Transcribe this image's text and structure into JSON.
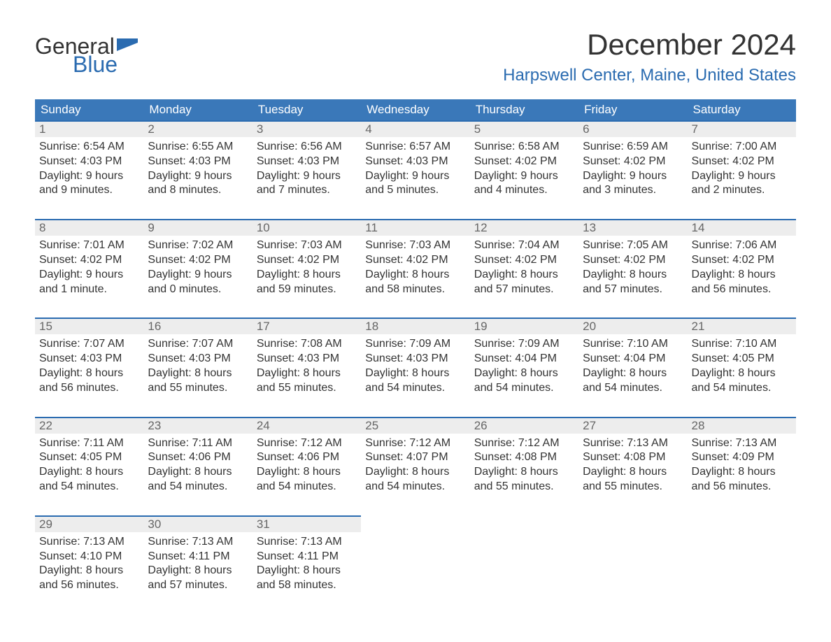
{
  "logo": {
    "line1": "General",
    "line2": "Blue",
    "flag_color": "#2a6bb0"
  },
  "title": "December 2024",
  "location": "Harpswell Center, Maine, United States",
  "colors": {
    "header_bg": "#3a78b9",
    "header_text": "#ffffff",
    "accent": "#2a6bb0",
    "daynum_bg": "#ededed",
    "daynum_text": "#666666",
    "body_text": "#333333",
    "background": "#ffffff"
  },
  "days_of_week": [
    "Sunday",
    "Monday",
    "Tuesday",
    "Wednesday",
    "Thursday",
    "Friday",
    "Saturday"
  ],
  "weeks": [
    [
      {
        "n": "1",
        "sunrise": "Sunrise: 6:54 AM",
        "sunset": "Sunset: 4:03 PM",
        "dl1": "Daylight: 9 hours",
        "dl2": "and 9 minutes."
      },
      {
        "n": "2",
        "sunrise": "Sunrise: 6:55 AM",
        "sunset": "Sunset: 4:03 PM",
        "dl1": "Daylight: 9 hours",
        "dl2": "and 8 minutes."
      },
      {
        "n": "3",
        "sunrise": "Sunrise: 6:56 AM",
        "sunset": "Sunset: 4:03 PM",
        "dl1": "Daylight: 9 hours",
        "dl2": "and 7 minutes."
      },
      {
        "n": "4",
        "sunrise": "Sunrise: 6:57 AM",
        "sunset": "Sunset: 4:03 PM",
        "dl1": "Daylight: 9 hours",
        "dl2": "and 5 minutes."
      },
      {
        "n": "5",
        "sunrise": "Sunrise: 6:58 AM",
        "sunset": "Sunset: 4:02 PM",
        "dl1": "Daylight: 9 hours",
        "dl2": "and 4 minutes."
      },
      {
        "n": "6",
        "sunrise": "Sunrise: 6:59 AM",
        "sunset": "Sunset: 4:02 PM",
        "dl1": "Daylight: 9 hours",
        "dl2": "and 3 minutes."
      },
      {
        "n": "7",
        "sunrise": "Sunrise: 7:00 AM",
        "sunset": "Sunset: 4:02 PM",
        "dl1": "Daylight: 9 hours",
        "dl2": "and 2 minutes."
      }
    ],
    [
      {
        "n": "8",
        "sunrise": "Sunrise: 7:01 AM",
        "sunset": "Sunset: 4:02 PM",
        "dl1": "Daylight: 9 hours",
        "dl2": "and 1 minute."
      },
      {
        "n": "9",
        "sunrise": "Sunrise: 7:02 AM",
        "sunset": "Sunset: 4:02 PM",
        "dl1": "Daylight: 9 hours",
        "dl2": "and 0 minutes."
      },
      {
        "n": "10",
        "sunrise": "Sunrise: 7:03 AM",
        "sunset": "Sunset: 4:02 PM",
        "dl1": "Daylight: 8 hours",
        "dl2": "and 59 minutes."
      },
      {
        "n": "11",
        "sunrise": "Sunrise: 7:03 AM",
        "sunset": "Sunset: 4:02 PM",
        "dl1": "Daylight: 8 hours",
        "dl2": "and 58 minutes."
      },
      {
        "n": "12",
        "sunrise": "Sunrise: 7:04 AM",
        "sunset": "Sunset: 4:02 PM",
        "dl1": "Daylight: 8 hours",
        "dl2": "and 57 minutes."
      },
      {
        "n": "13",
        "sunrise": "Sunrise: 7:05 AM",
        "sunset": "Sunset: 4:02 PM",
        "dl1": "Daylight: 8 hours",
        "dl2": "and 57 minutes."
      },
      {
        "n": "14",
        "sunrise": "Sunrise: 7:06 AM",
        "sunset": "Sunset: 4:02 PM",
        "dl1": "Daylight: 8 hours",
        "dl2": "and 56 minutes."
      }
    ],
    [
      {
        "n": "15",
        "sunrise": "Sunrise: 7:07 AM",
        "sunset": "Sunset: 4:03 PM",
        "dl1": "Daylight: 8 hours",
        "dl2": "and 56 minutes."
      },
      {
        "n": "16",
        "sunrise": "Sunrise: 7:07 AM",
        "sunset": "Sunset: 4:03 PM",
        "dl1": "Daylight: 8 hours",
        "dl2": "and 55 minutes."
      },
      {
        "n": "17",
        "sunrise": "Sunrise: 7:08 AM",
        "sunset": "Sunset: 4:03 PM",
        "dl1": "Daylight: 8 hours",
        "dl2": "and 55 minutes."
      },
      {
        "n": "18",
        "sunrise": "Sunrise: 7:09 AM",
        "sunset": "Sunset: 4:03 PM",
        "dl1": "Daylight: 8 hours",
        "dl2": "and 54 minutes."
      },
      {
        "n": "19",
        "sunrise": "Sunrise: 7:09 AM",
        "sunset": "Sunset: 4:04 PM",
        "dl1": "Daylight: 8 hours",
        "dl2": "and 54 minutes."
      },
      {
        "n": "20",
        "sunrise": "Sunrise: 7:10 AM",
        "sunset": "Sunset: 4:04 PM",
        "dl1": "Daylight: 8 hours",
        "dl2": "and 54 minutes."
      },
      {
        "n": "21",
        "sunrise": "Sunrise: 7:10 AM",
        "sunset": "Sunset: 4:05 PM",
        "dl1": "Daylight: 8 hours",
        "dl2": "and 54 minutes."
      }
    ],
    [
      {
        "n": "22",
        "sunrise": "Sunrise: 7:11 AM",
        "sunset": "Sunset: 4:05 PM",
        "dl1": "Daylight: 8 hours",
        "dl2": "and 54 minutes."
      },
      {
        "n": "23",
        "sunrise": "Sunrise: 7:11 AM",
        "sunset": "Sunset: 4:06 PM",
        "dl1": "Daylight: 8 hours",
        "dl2": "and 54 minutes."
      },
      {
        "n": "24",
        "sunrise": "Sunrise: 7:12 AM",
        "sunset": "Sunset: 4:06 PM",
        "dl1": "Daylight: 8 hours",
        "dl2": "and 54 minutes."
      },
      {
        "n": "25",
        "sunrise": "Sunrise: 7:12 AM",
        "sunset": "Sunset: 4:07 PM",
        "dl1": "Daylight: 8 hours",
        "dl2": "and 54 minutes."
      },
      {
        "n": "26",
        "sunrise": "Sunrise: 7:12 AM",
        "sunset": "Sunset: 4:08 PM",
        "dl1": "Daylight: 8 hours",
        "dl2": "and 55 minutes."
      },
      {
        "n": "27",
        "sunrise": "Sunrise: 7:13 AM",
        "sunset": "Sunset: 4:08 PM",
        "dl1": "Daylight: 8 hours",
        "dl2": "and 55 minutes."
      },
      {
        "n": "28",
        "sunrise": "Sunrise: 7:13 AM",
        "sunset": "Sunset: 4:09 PM",
        "dl1": "Daylight: 8 hours",
        "dl2": "and 56 minutes."
      }
    ],
    [
      {
        "n": "29",
        "sunrise": "Sunrise: 7:13 AM",
        "sunset": "Sunset: 4:10 PM",
        "dl1": "Daylight: 8 hours",
        "dl2": "and 56 minutes."
      },
      {
        "n": "30",
        "sunrise": "Sunrise: 7:13 AM",
        "sunset": "Sunset: 4:11 PM",
        "dl1": "Daylight: 8 hours",
        "dl2": "and 57 minutes."
      },
      {
        "n": "31",
        "sunrise": "Sunrise: 7:13 AM",
        "sunset": "Sunset: 4:11 PM",
        "dl1": "Daylight: 8 hours",
        "dl2": "and 58 minutes."
      },
      null,
      null,
      null,
      null
    ]
  ]
}
